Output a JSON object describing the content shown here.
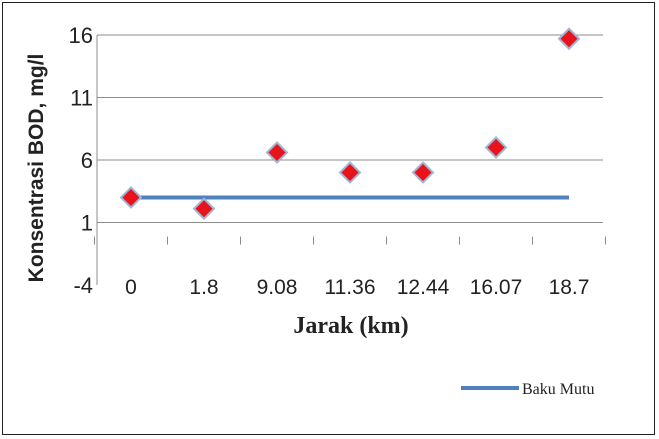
{
  "chart_data": {
    "type": "scatter",
    "title": "",
    "xlabel": "Jarak (km)",
    "ylabel": "Konsentrasi BOD, mg/l",
    "categories": [
      "0",
      "1.8",
      "9.08",
      "11.36",
      "12.44",
      "16.07",
      "18.7"
    ],
    "yticks": [
      "-4",
      "1",
      "6",
      "11",
      "16"
    ],
    "ylim": [
      -4,
      16
    ],
    "grid": true,
    "series": [
      {
        "name": "",
        "values": [
          3.0,
          2.1,
          6.6,
          5.0,
          5.0,
          7.0,
          15.7
        ],
        "color": "#e8141c",
        "marker": "diamond"
      },
      {
        "name": "Baku Mutu",
        "values": [
          3,
          3,
          3,
          3,
          3,
          3,
          3
        ],
        "color": "#4f81bd",
        "style": "line"
      }
    ],
    "legend": {
      "placement": "bottom-right",
      "entries": [
        "Baku Mutu"
      ]
    }
  }
}
